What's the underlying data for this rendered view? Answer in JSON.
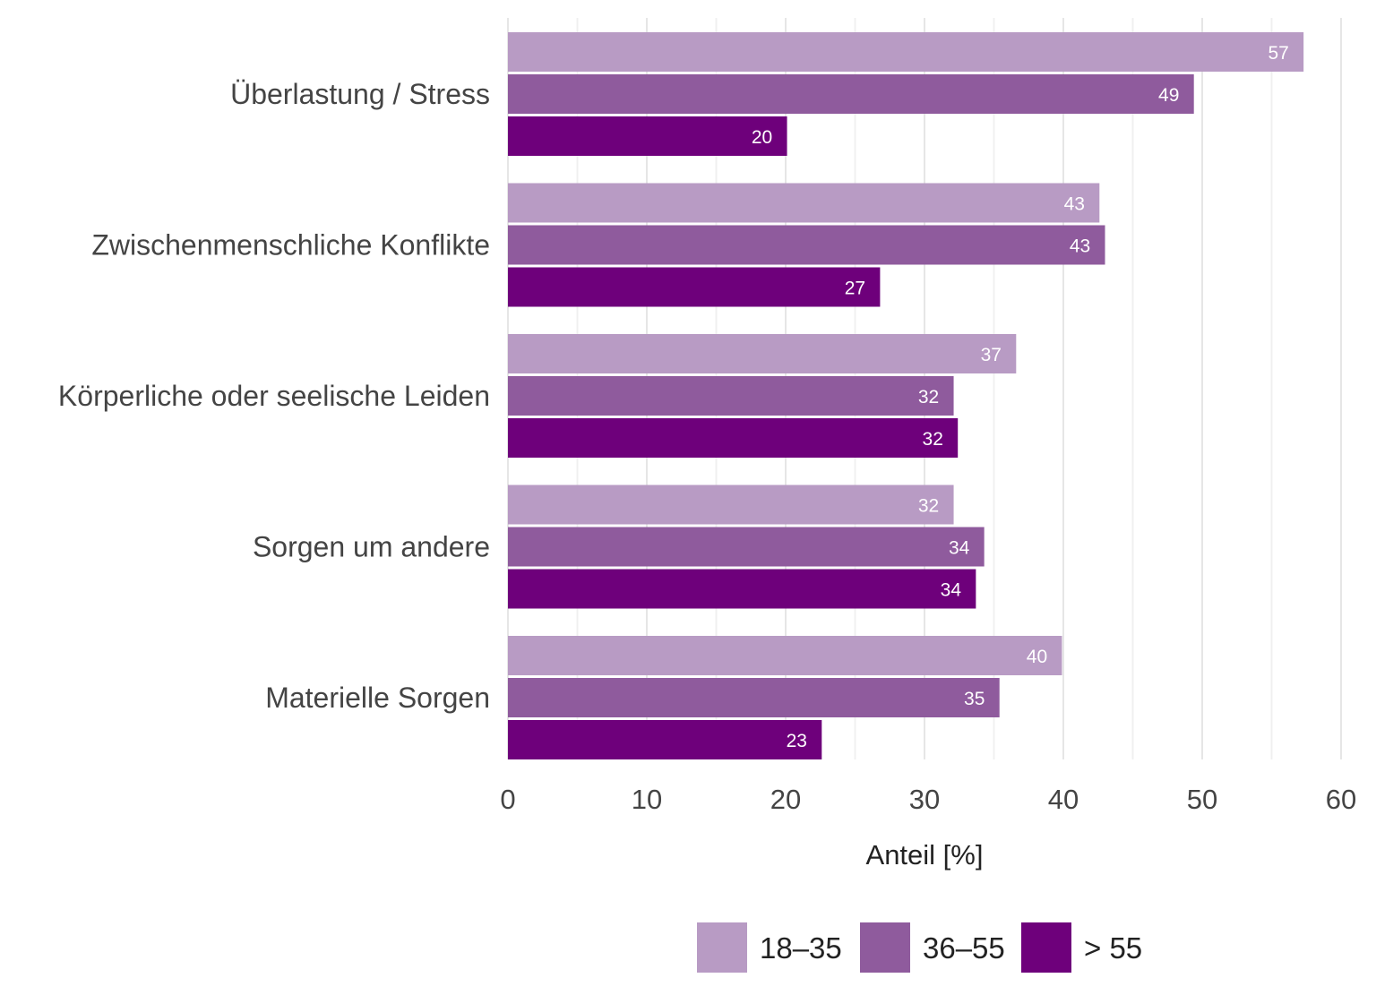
{
  "chart_data": {
    "type": "bar",
    "orientation": "horizontal",
    "title": "",
    "xlabel": "Anteil [%]",
    "ylabel": "",
    "xlim": [
      0,
      60
    ],
    "xticks": [
      0,
      10,
      20,
      30,
      40,
      50,
      60
    ],
    "grid": true,
    "legend_position": "bottom",
    "categories": [
      "Überlastung / Stress",
      "Zwischenmenschliche Konflikte",
      "Körperliche oder seelische Leiden",
      "Sorgen um andere",
      "Materielle Sorgen"
    ],
    "series": [
      {
        "name": "18–35",
        "color": "#b89bc4",
        "values": [
          57.3,
          42.6,
          36.6,
          32.1,
          39.9
        ],
        "labels": [
          "57",
          "43",
          "37",
          "32",
          "40"
        ]
      },
      {
        "name": "36–55",
        "color": "#8f5b9d",
        "values": [
          49.4,
          43.0,
          32.1,
          34.3,
          35.4
        ],
        "labels": [
          "49",
          "43",
          "32",
          "34",
          "35"
        ]
      },
      {
        "name": "> 55",
        "color": "#6e007b",
        "values": [
          20.1,
          26.8,
          32.4,
          33.7,
          22.6
        ],
        "labels": [
          "20",
          "27",
          "32",
          "34",
          "23"
        ]
      }
    ]
  }
}
